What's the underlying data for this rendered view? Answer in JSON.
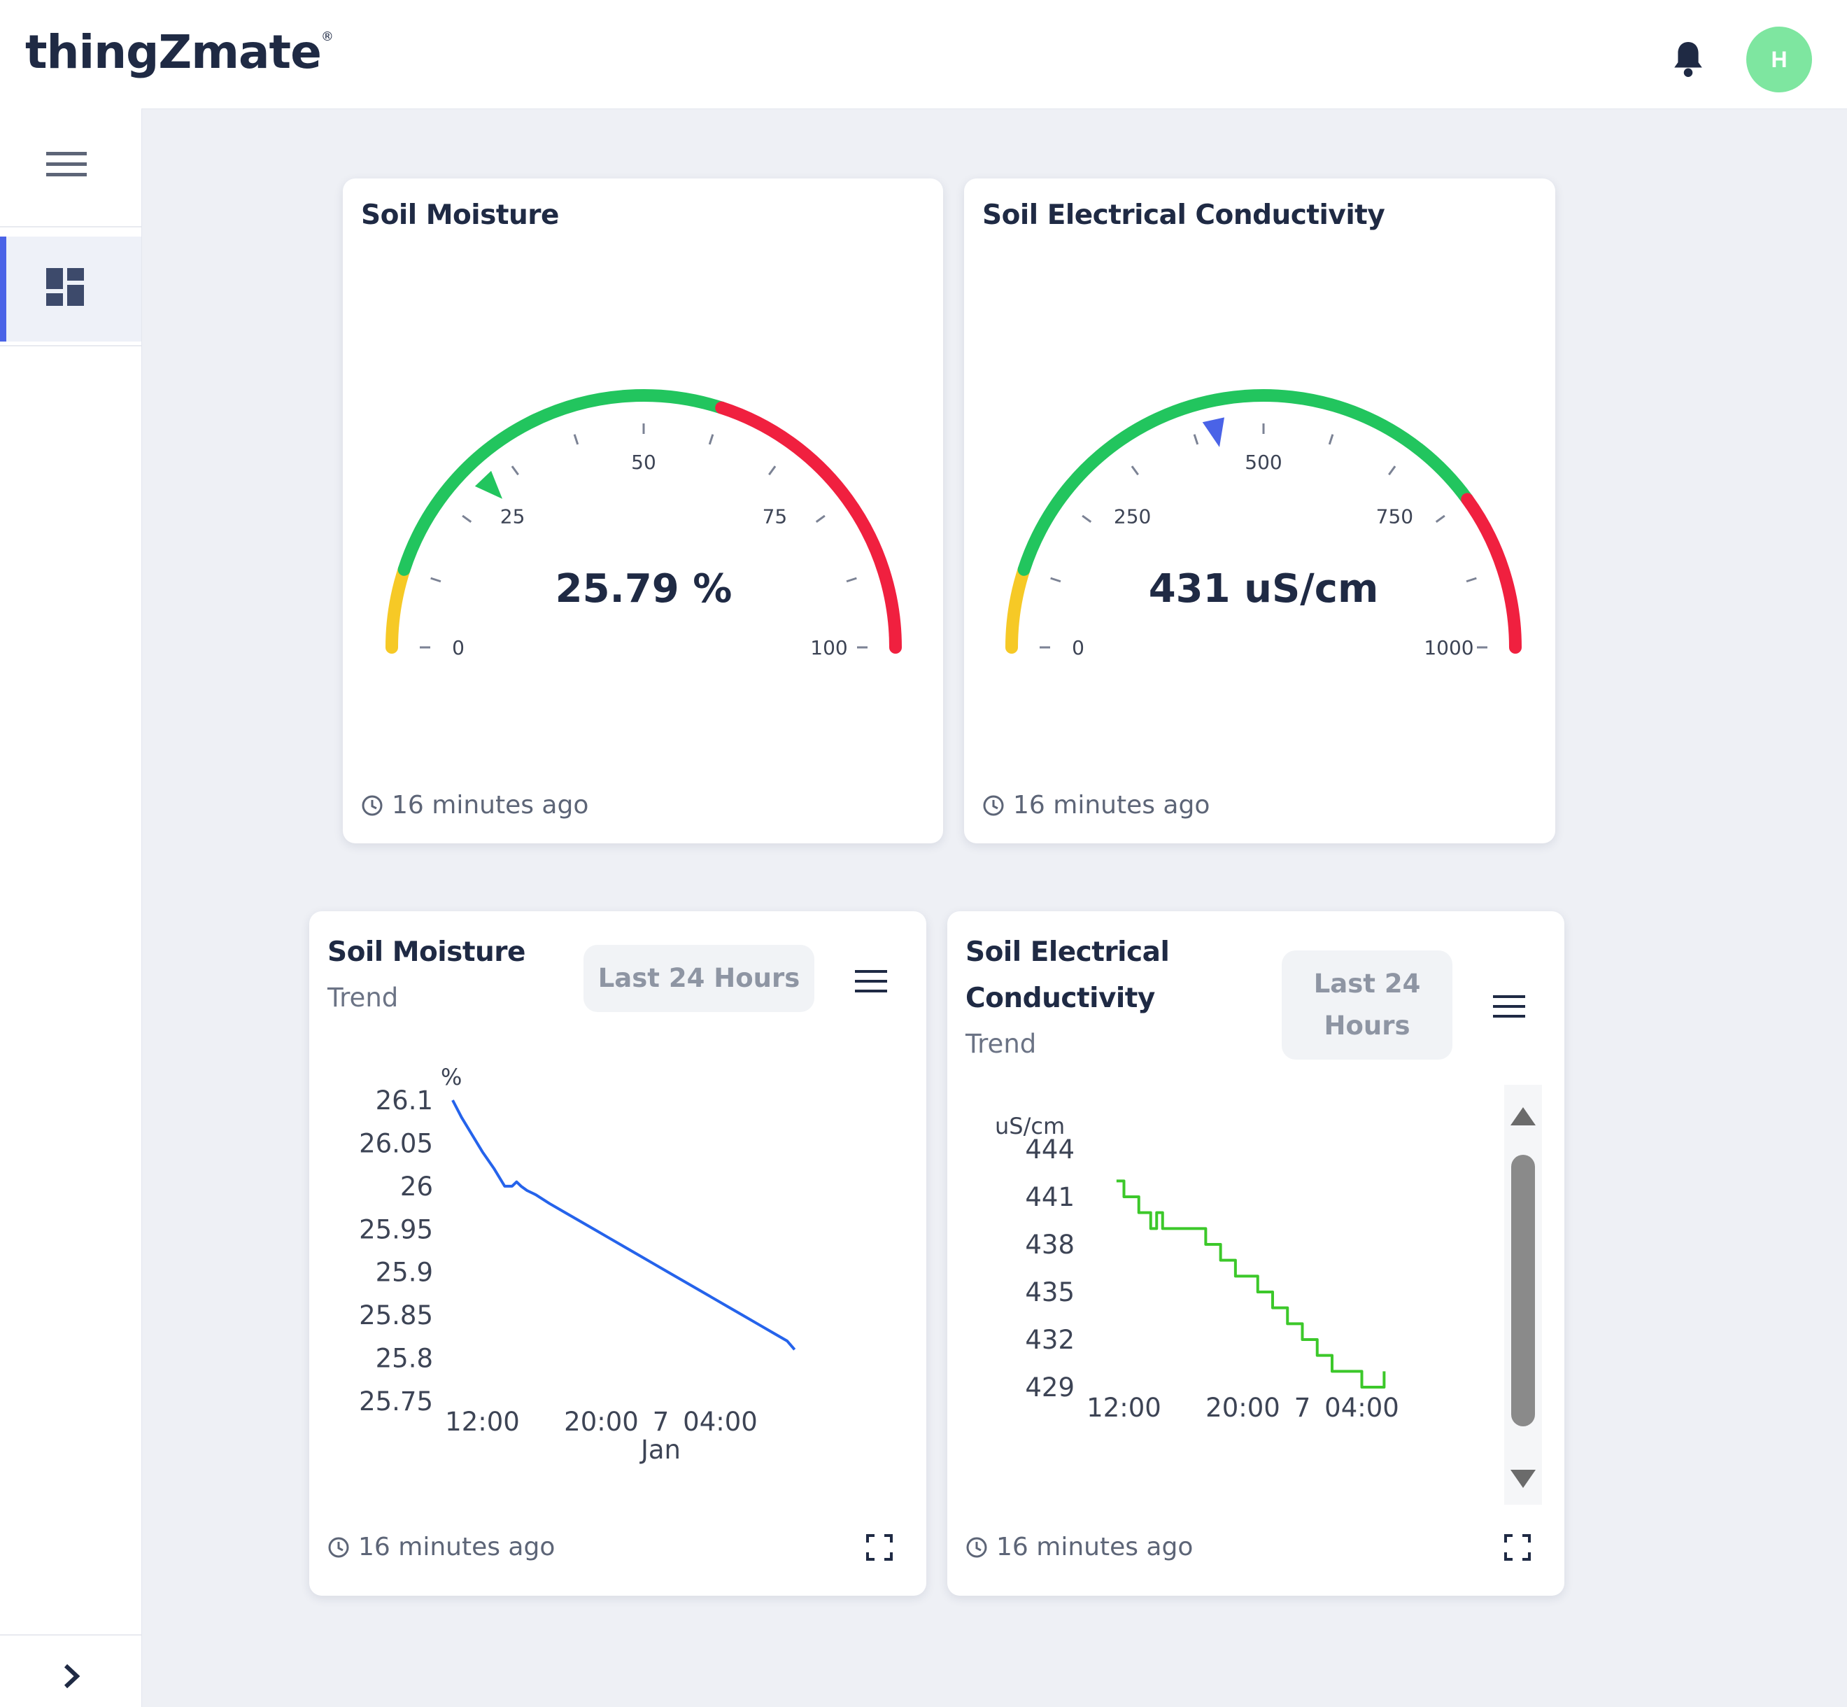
{
  "app": {
    "logo": "thingZmate",
    "logo_mark": "®",
    "avatar_initial": "H"
  },
  "gauges": [
    {
      "title": "Soil Moisture",
      "reading": "25.79 %",
      "value": 25.79,
      "min": 0,
      "max": 100,
      "major_ticks": [
        "0",
        "25",
        "50",
        "75",
        "100"
      ],
      "bands": [
        {
          "from": 0,
          "to": 10,
          "color": "#f6c926"
        },
        {
          "from": 10,
          "to": 60,
          "color": "#22c55e"
        },
        {
          "from": 60,
          "to": 100,
          "color": "#f0203f"
        }
      ],
      "pointer_color": "#22c55e",
      "updated": "16 minutes ago"
    },
    {
      "title": "Soil Electrical Conductivity",
      "reading": "431 uS/cm",
      "value": 431,
      "min": 0,
      "max": 1000,
      "major_ticks": [
        "0",
        "250",
        "500",
        "750",
        "1000"
      ],
      "bands": [
        {
          "from": 0,
          "to": 100,
          "color": "#f6c926"
        },
        {
          "from": 100,
          "to": 800,
          "color": "#22c55e"
        },
        {
          "from": 800,
          "to": 1000,
          "color": "#f0203f"
        }
      ],
      "pointer_color": "#4a63e7",
      "updated": "16 minutes ago"
    }
  ],
  "trends": [
    {
      "title": "Soil Moisture",
      "subtitle": "Trend",
      "range_label": "Last 24 Hours",
      "updated": "16 minutes ago"
    },
    {
      "title_line1": "Soil Electrical",
      "title_line2": "Conductivity",
      "subtitle": "Trend",
      "range_line1": "Last 24",
      "range_line2": "Hours",
      "updated": "16 minutes ago"
    }
  ],
  "chart_data": [
    {
      "type": "line",
      "unit": "%",
      "color": "#2563eb",
      "ylim": [
        25.75,
        26.1
      ],
      "y_ticks": [
        "26.1",
        "26.05",
        "26",
        "25.95",
        "25.9",
        "25.85",
        "25.8",
        "25.75"
      ],
      "x_ticks": [
        "12:00",
        "20:00",
        "7",
        "04:00"
      ],
      "x_sublabel": "Jan",
      "x_range_hours": [
        10,
        34
      ],
      "x_tick_hours": [
        12,
        20,
        24,
        28
      ],
      "series": [
        {
          "x_hours": [
            10.0,
            10.6,
            11.3,
            12.0,
            12.8,
            13.5,
            14.0,
            14.3,
            14.6,
            15.0,
            15.6,
            16.5,
            17.5,
            18.5,
            19.5,
            20.5,
            21.5,
            22.5,
            23.5,
            24.5,
            25.5,
            26.5,
            27.5,
            28.5,
            29.5,
            30.5,
            31.5,
            32.5,
            33.0
          ],
          "values": [
            26.1,
            26.08,
            26.06,
            26.04,
            26.02,
            26.0,
            26.0,
            26.005,
            26.0,
            25.995,
            25.99,
            25.98,
            25.97,
            25.96,
            25.95,
            25.94,
            25.93,
            25.92,
            25.91,
            25.9,
            25.89,
            25.88,
            25.87,
            25.86,
            25.85,
            25.84,
            25.83,
            25.82,
            25.81
          ]
        }
      ]
    },
    {
      "type": "line",
      "unit": "uS/cm",
      "color": "#3cc82a",
      "ylim": [
        429,
        444
      ],
      "y_ticks": [
        "444",
        "441",
        "438",
        "435",
        "432",
        "429"
      ],
      "x_ticks": [
        "12:00",
        "20:00",
        "7",
        "04:00"
      ],
      "x_range_hours": [
        10,
        34
      ],
      "x_tick_hours": [
        12,
        20,
        24,
        28
      ],
      "series": [
        {
          "x_hours": [
            11.5,
            12.0,
            13.0,
            13.8,
            14.2,
            14.6,
            15.0,
            16.0,
            17.5,
            18.5,
            19.5,
            21.0,
            22.0,
            23.0,
            24.0,
            25.0,
            26.0,
            27.0,
            28.0,
            29.0,
            29.5
          ],
          "values": [
            442,
            441,
            440,
            439,
            440,
            439,
            439,
            439,
            438,
            437,
            436,
            435,
            434,
            433,
            432,
            431,
            430,
            430,
            429,
            429,
            430
          ]
        }
      ]
    }
  ]
}
